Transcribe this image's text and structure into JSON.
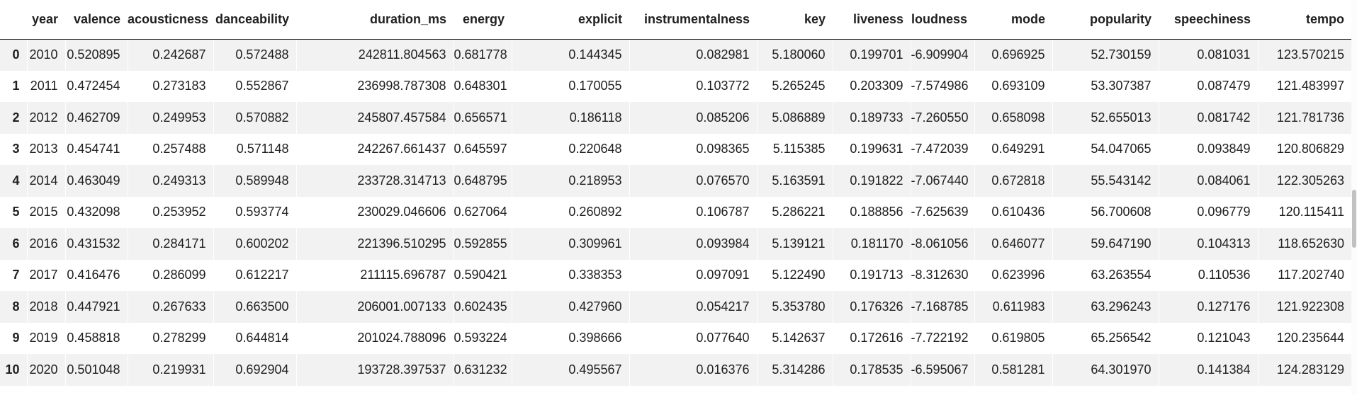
{
  "table": {
    "corner_label": "",
    "columns": [
      "year",
      "valence",
      "acousticness",
      "danceability",
      "duration_ms",
      "energy",
      "explicit",
      "instrumentalness",
      "key",
      "liveness",
      "loudness",
      "mode",
      "popularity",
      "speechiness",
      "tempo"
    ],
    "rows": [
      {
        "index": "0",
        "values": [
          "2010",
          "0.520895",
          "0.242687",
          "0.572488",
          "242811.804563",
          "0.681778",
          "0.144345",
          "0.082981",
          "5.180060",
          "0.199701",
          "-6.909904",
          "0.696925",
          "52.730159",
          "0.081031",
          "123.570215"
        ]
      },
      {
        "index": "1",
        "values": [
          "2011",
          "0.472454",
          "0.273183",
          "0.552867",
          "236998.787308",
          "0.648301",
          "0.170055",
          "0.103772",
          "5.265245",
          "0.203309",
          "-7.574986",
          "0.693109",
          "53.307387",
          "0.087479",
          "121.483997"
        ]
      },
      {
        "index": "2",
        "values": [
          "2012",
          "0.462709",
          "0.249953",
          "0.570882",
          "245807.457584",
          "0.656571",
          "0.186118",
          "0.085206",
          "5.086889",
          "0.189733",
          "-7.260550",
          "0.658098",
          "52.655013",
          "0.081742",
          "121.781736"
        ]
      },
      {
        "index": "3",
        "values": [
          "2013",
          "0.454741",
          "0.257488",
          "0.571148",
          "242267.661437",
          "0.645597",
          "0.220648",
          "0.098365",
          "5.115385",
          "0.199631",
          "-7.472039",
          "0.649291",
          "54.047065",
          "0.093849",
          "120.806829"
        ]
      },
      {
        "index": "4",
        "values": [
          "2014",
          "0.463049",
          "0.249313",
          "0.589948",
          "233728.314713",
          "0.648795",
          "0.218953",
          "0.076570",
          "5.163591",
          "0.191822",
          "-7.067440",
          "0.672818",
          "55.543142",
          "0.084061",
          "122.305263"
        ]
      },
      {
        "index": "5",
        "values": [
          "2015",
          "0.432098",
          "0.253952",
          "0.593774",
          "230029.046606",
          "0.627064",
          "0.260892",
          "0.106787",
          "5.286221",
          "0.188856",
          "-7.625639",
          "0.610436",
          "56.700608",
          "0.096779",
          "120.115411"
        ]
      },
      {
        "index": "6",
        "values": [
          "2016",
          "0.431532",
          "0.284171",
          "0.600202",
          "221396.510295",
          "0.592855",
          "0.309961",
          "0.093984",
          "5.139121",
          "0.181170",
          "-8.061056",
          "0.646077",
          "59.647190",
          "0.104313",
          "118.652630"
        ]
      },
      {
        "index": "7",
        "values": [
          "2017",
          "0.416476",
          "0.286099",
          "0.612217",
          "211115.696787",
          "0.590421",
          "0.338353",
          "0.097091",
          "5.122490",
          "0.191713",
          "-8.312630",
          "0.623996",
          "63.263554",
          "0.110536",
          "117.202740"
        ]
      },
      {
        "index": "8",
        "values": [
          "2018",
          "0.447921",
          "0.267633",
          "0.663500",
          "206001.007133",
          "0.602435",
          "0.427960",
          "0.054217",
          "5.353780",
          "0.176326",
          "-7.168785",
          "0.611983",
          "63.296243",
          "0.127176",
          "121.922308"
        ]
      },
      {
        "index": "9",
        "values": [
          "2019",
          "0.458818",
          "0.278299",
          "0.644814",
          "201024.788096",
          "0.593224",
          "0.398666",
          "0.077640",
          "5.142637",
          "0.172616",
          "-7.722192",
          "0.619805",
          "65.256542",
          "0.121043",
          "120.235644"
        ]
      },
      {
        "index": "10",
        "values": [
          "2020",
          "0.501048",
          "0.219931",
          "0.692904",
          "193728.397537",
          "0.631232",
          "0.495567",
          "0.016376",
          "5.314286",
          "0.178535",
          "-6.595067",
          "0.581281",
          "64.301970",
          "0.141384",
          "124.283129"
        ]
      }
    ]
  },
  "colors": {
    "background": "#ffffff",
    "row_stripe": "#f2f2f2",
    "text": "#1f1f1f",
    "header_border": "#161616",
    "scrollbar_thumb": "#c1c1c1"
  }
}
